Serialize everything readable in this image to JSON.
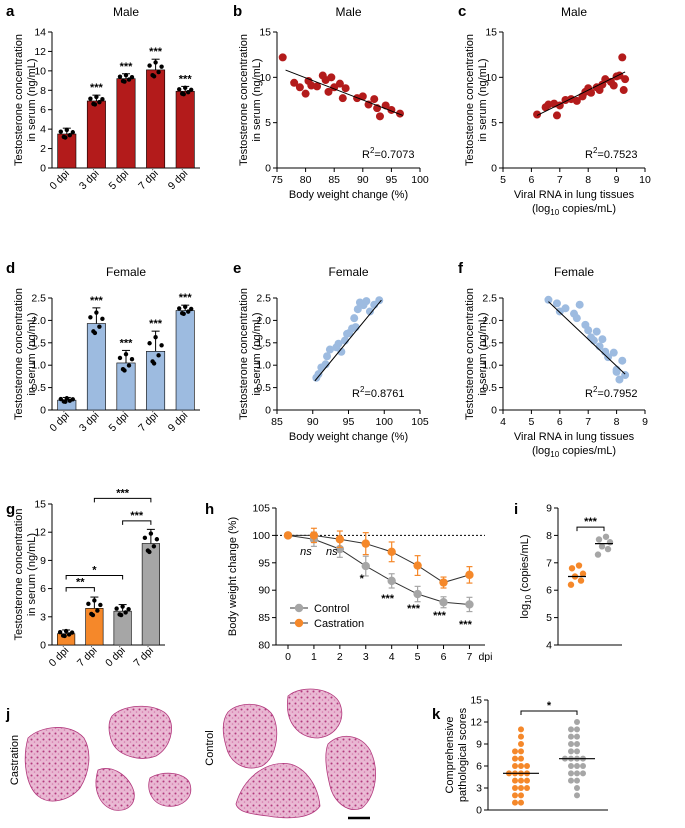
{
  "chart_data": [
    {
      "panel": "a",
      "type": "bar",
      "title": "Male",
      "ylabel": "Testosterone concentration in serum (ng/mL)",
      "categories": [
        "0 dpi",
        "3 dpi",
        "5 dpi",
        "7 dpi",
        "9 dpi"
      ],
      "values": [
        3.5,
        6.9,
        9.2,
        10.1,
        7.9
      ],
      "errors": [
        0.6,
        0.6,
        0.5,
        1.1,
        0.5
      ],
      "significance": [
        "",
        "***",
        "***",
        "***",
        "***"
      ],
      "ylim": [
        0,
        14
      ],
      "yticks": [
        "0",
        "2",
        "4",
        "6",
        "8",
        "10",
        "12",
        "14"
      ],
      "color": "#B31B1B"
    },
    {
      "panel": "b",
      "type": "scatter",
      "title": "Male",
      "xlabel": "Body weight change (%)",
      "ylabel": "Testosterone concentration in serum (ng/mL)",
      "xlim": [
        75,
        100
      ],
      "ylim": [
        0,
        15
      ],
      "xticks": [
        "75",
        "80",
        "85",
        "90",
        "95",
        "100"
      ],
      "yticks": [
        "0",
        "5",
        "10",
        "15"
      ],
      "r2_label": "R",
      "r2_sup": "2",
      "r2_value": "=0.7073",
      "fit": [
        [
          76.5,
          10.8
        ],
        [
          97,
          5.8
        ]
      ],
      "points": [
        [
          76,
          12.2
        ],
        [
          78,
          9.4
        ],
        [
          79,
          8.9
        ],
        [
          80,
          8.2
        ],
        [
          80.5,
          9.6
        ],
        [
          81,
          9.1
        ],
        [
          82,
          9.0
        ],
        [
          83,
          10.2
        ],
        [
          83.5,
          9.7
        ],
        [
          84,
          8.4
        ],
        [
          84.5,
          10.0
        ],
        [
          85,
          8.9
        ],
        [
          86,
          9.3
        ],
        [
          86.5,
          7.7
        ],
        [
          87,
          8.8
        ],
        [
          89,
          7.7
        ],
        [
          90,
          7.9
        ],
        [
          91,
          7.0
        ],
        [
          92,
          7.6
        ],
        [
          92.5,
          6.6
        ],
        [
          93,
          5.7
        ],
        [
          94,
          6.9
        ],
        [
          95,
          6.4
        ],
        [
          96.5,
          6.0
        ]
      ],
      "color": "#B31B1B"
    },
    {
      "panel": "c",
      "type": "scatter",
      "title": "Male",
      "xlabel": "Viral RNA in lung tissues",
      "xlabel2_pre": "(log",
      "xlabel2_sub": "10",
      "xlabel2_post": " copies/mL)",
      "ylabel": "Testosterone concentration in serum (ng/mL)",
      "xlim": [
        5,
        10
      ],
      "ylim": [
        0,
        15
      ],
      "xticks": [
        "5",
        "6",
        "7",
        "8",
        "9",
        "10"
      ],
      "yticks": [
        "0",
        "5",
        "10",
        "15"
      ],
      "r2_label": "R",
      "r2_sup": "2",
      "r2_value": "=0.7523",
      "fit": [
        [
          6.2,
          5.8
        ],
        [
          9.3,
          10.6
        ]
      ],
      "points": [
        [
          6.2,
          5.9
        ],
        [
          6.5,
          6.7
        ],
        [
          6.6,
          7.0
        ],
        [
          6.8,
          7.1
        ],
        [
          6.9,
          5.8
        ],
        [
          7.0,
          6.9
        ],
        [
          7.2,
          7.5
        ],
        [
          7.4,
          7.6
        ],
        [
          7.6,
          7.4
        ],
        [
          7.8,
          7.9
        ],
        [
          7.9,
          8.4
        ],
        [
          8.0,
          8.8
        ],
        [
          8.1,
          8.3
        ],
        [
          8.3,
          8.9
        ],
        [
          8.4,
          8.6
        ],
        [
          8.5,
          9.2
        ],
        [
          8.6,
          9.8
        ],
        [
          8.8,
          9.5
        ],
        [
          8.9,
          9.1
        ],
        [
          9.0,
          10.1
        ],
        [
          9.1,
          10.2
        ],
        [
          9.2,
          12.2
        ],
        [
          9.25,
          8.6
        ],
        [
          9.3,
          9.8
        ]
      ],
      "color": "#B31B1B"
    },
    {
      "panel": "d",
      "type": "bar",
      "title": "Female",
      "ylabel": "Testosterone concentration in serum (ng/mL)",
      "categories": [
        "0 dpi",
        "3 dpi",
        "5 dpi",
        "7 dpi",
        "9 dpi"
      ],
      "values": [
        0.22,
        1.93,
        1.05,
        1.31,
        2.22
      ],
      "errors": [
        0.06,
        0.35,
        0.28,
        0.45,
        0.12
      ],
      "significance": [
        "",
        "***",
        "***",
        "***",
        "***"
      ],
      "ylim": [
        0,
        2.5
      ],
      "yticks": [
        "0",
        "0.5",
        "1.0",
        "1.5",
        "2.0",
        "2.5"
      ],
      "color": "#9DBBE0"
    },
    {
      "panel": "e",
      "type": "scatter",
      "title": "Female",
      "xlabel": "Body weight change (%)",
      "ylabel": "Testosterone concentration in serum (ng/mL)",
      "xlim": [
        85,
        105
      ],
      "ylim": [
        0,
        2.5
      ],
      "xticks": [
        "85",
        "90",
        "95",
        "100",
        "105"
      ],
      "yticks": [
        "0",
        "0.5",
        "1.0",
        "1.5",
        "2.0",
        "2.5"
      ],
      "r2_label": "R",
      "r2_sup": "2",
      "r2_value": "=0.8761",
      "fit": [
        [
          90.3,
          0.65
        ],
        [
          99.6,
          2.45
        ]
      ],
      "points": [
        [
          90.5,
          0.72
        ],
        [
          90.8,
          0.8
        ],
        [
          91.2,
          0.95
        ],
        [
          91.8,
          1.02
        ],
        [
          92.0,
          1.2
        ],
        [
          92.4,
          1.35
        ],
        [
          93.3,
          1.4
        ],
        [
          93.6,
          1.48
        ],
        [
          94.0,
          1.3
        ],
        [
          94.5,
          1.55
        ],
        [
          94.8,
          1.7
        ],
        [
          95.1,
          1.72
        ],
        [
          95.5,
          1.82
        ],
        [
          95.8,
          2.05
        ],
        [
          96.0,
          1.85
        ],
        [
          96.3,
          2.25
        ],
        [
          96.6,
          2.4
        ],
        [
          97.1,
          2.34
        ],
        [
          97.5,
          2.43
        ],
        [
          98.0,
          2.2
        ],
        [
          98.6,
          2.35
        ],
        [
          99.3,
          2.45
        ]
      ],
      "color": "#9DBBE0"
    },
    {
      "panel": "f",
      "type": "scatter",
      "title": "Female",
      "xlabel": "Viral RNA in lung tissues",
      "xlabel2_pre": "(log",
      "xlabel2_sub": "10",
      "xlabel2_post": " copies/mL)",
      "ylabel": "Testosterone concentration in serum (ng/mL)",
      "xlim": [
        4,
        9
      ],
      "ylim": [
        0,
        2.5
      ],
      "xticks": [
        "4",
        "5",
        "6",
        "7",
        "8",
        "9"
      ],
      "yticks": [
        "0",
        "0.5",
        "1.0",
        "1.5",
        "2.0",
        "2.5"
      ],
      "r2_label": "R",
      "r2_sup": "2",
      "r2_value": "=0.7952",
      "fit": [
        [
          5.6,
          2.42
        ],
        [
          8.3,
          0.8
        ]
      ],
      "points": [
        [
          5.6,
          2.46
        ],
        [
          5.9,
          2.38
        ],
        [
          6.0,
          2.2
        ],
        [
          6.2,
          2.27
        ],
        [
          6.5,
          2.15
        ],
        [
          6.6,
          2.05
        ],
        [
          6.7,
          2.35
        ],
        [
          6.9,
          1.9
        ],
        [
          7.0,
          1.78
        ],
        [
          7.1,
          1.62
        ],
        [
          7.2,
          1.55
        ],
        [
          7.3,
          1.75
        ],
        [
          7.4,
          1.42
        ],
        [
          7.5,
          1.58
        ],
        [
          7.6,
          1.3
        ],
        [
          7.7,
          1.18
        ],
        [
          7.9,
          1.28
        ],
        [
          8.0,
          0.85
        ],
        [
          8.1,
          0.68
        ],
        [
          8.2,
          1.1
        ],
        [
          8.3,
          0.78
        ],
        [
          8.0,
          0.9
        ]
      ],
      "color": "#9DBBE0"
    },
    {
      "panel": "g",
      "type": "bar",
      "ylabel": "Testosterone concentration in serum (ng/mL)",
      "categories": [
        "0 dpi",
        "7 dpi",
        "0 dpi",
        "7 dpi"
      ],
      "values": [
        1.2,
        3.9,
        3.6,
        10.8
      ],
      "errors": [
        0.4,
        1.2,
        0.7,
        1.5
      ],
      "colors": [
        "#F5882A",
        "#F5882A",
        "#A6A6A6",
        "#A6A6A6"
      ],
      "ylim": [
        0,
        15
      ],
      "yticks": [
        "0",
        "3",
        "6",
        "9",
        "12",
        "15"
      ],
      "comparisons": [
        {
          "from": 0,
          "to": 1,
          "label": "**"
        },
        {
          "from": 0,
          "to": 2,
          "label": "*"
        },
        {
          "from": 2,
          "to": 3,
          "label": "***"
        },
        {
          "from": 1,
          "to": 3,
          "label": "***"
        }
      ]
    },
    {
      "panel": "h",
      "type": "line",
      "ylabel": "Body weight change (%)",
      "xunit": "dpi",
      "x": [
        0,
        1,
        2,
        3,
        4,
        5,
        6,
        7
      ],
      "xticks": [
        "0",
        "1",
        "2",
        "3",
        "4",
        "5",
        "6",
        "7"
      ],
      "ylim": [
        80,
        105
      ],
      "yticks": [
        "80",
        "85",
        "90",
        "95",
        "100",
        "105"
      ],
      "reference_line": 100,
      "series": [
        {
          "name": "Control",
          "values": [
            100,
            99.3,
            97.5,
            94.4,
            91.7,
            89.3,
            87.8,
            87.4
          ],
          "errors": [
            0.3,
            1.3,
            1.5,
            1.8,
            1.3,
            1.4,
            1.0,
            1.3
          ],
          "color": "#A6A6A6"
        },
        {
          "name": "Castration",
          "values": [
            100,
            100,
            99.3,
            98.5,
            97.0,
            94.5,
            91.4,
            92.8
          ],
          "errors": [
            0.3,
            1.3,
            1.5,
            2.0,
            1.8,
            1.8,
            1.0,
            1.5
          ],
          "color": "#F5882A"
        }
      ],
      "annotations": [
        {
          "x": 1,
          "label": "ns",
          "italic": true
        },
        {
          "x": 2,
          "label": "ns",
          "italic": true
        },
        {
          "x": 3,
          "label": "*"
        },
        {
          "x": 4,
          "label": "***"
        },
        {
          "x": 5,
          "label": "***"
        },
        {
          "x": 6,
          "label": "***"
        },
        {
          "x": 7,
          "label": "***"
        }
      ]
    },
    {
      "panel": "i",
      "type": "scatter",
      "ylabel_pre": "log",
      "ylabel_sub": "10",
      "ylabel_post": " (copies/mL)",
      "ylim": [
        4,
        9
      ],
      "yticks": [
        "4",
        "5",
        "6",
        "7",
        "8",
        "9"
      ],
      "groups": [
        {
          "color": "#F5882A",
          "mean": 6.5,
          "points": [
            6.2,
            6.35,
            6.5,
            6.6,
            6.8,
            6.9
          ]
        },
        {
          "color": "#A6A6A6",
          "mean": 7.7,
          "points": [
            7.3,
            7.5,
            7.6,
            7.75,
            7.85,
            7.95
          ]
        }
      ],
      "significance": "***"
    },
    {
      "panel": "k",
      "type": "scatter",
      "ylabel": "Comprehensive pathological scores",
      "ylim": [
        0,
        15
      ],
      "yticks": [
        "0",
        "3",
        "6",
        "9",
        "12",
        "15"
      ],
      "groups": [
        {
          "color": "#F5882A",
          "mean": 5,
          "points": [
            1,
            1,
            2,
            2,
            3,
            3,
            3,
            4,
            4,
            4,
            5,
            5,
            5,
            5,
            6,
            6,
            6,
            7,
            7,
            8,
            8,
            9,
            10,
            11
          ]
        },
        {
          "color": "#A6A6A6",
          "mean": 7,
          "points": [
            2,
            3,
            4,
            4,
            5,
            5,
            5,
            6,
            6,
            6,
            7,
            7,
            7,
            7,
            8,
            8,
            9,
            9,
            10,
            10,
            11,
            11,
            12
          ]
        }
      ],
      "significance": "*"
    }
  ],
  "panel_j": {
    "label_castration": "Castration",
    "label_control": "Control",
    "tissue_color": "#C2418C"
  },
  "panel_labels": [
    "a",
    "b",
    "c",
    "d",
    "e",
    "f",
    "g",
    "h",
    "i",
    "j",
    "k"
  ]
}
